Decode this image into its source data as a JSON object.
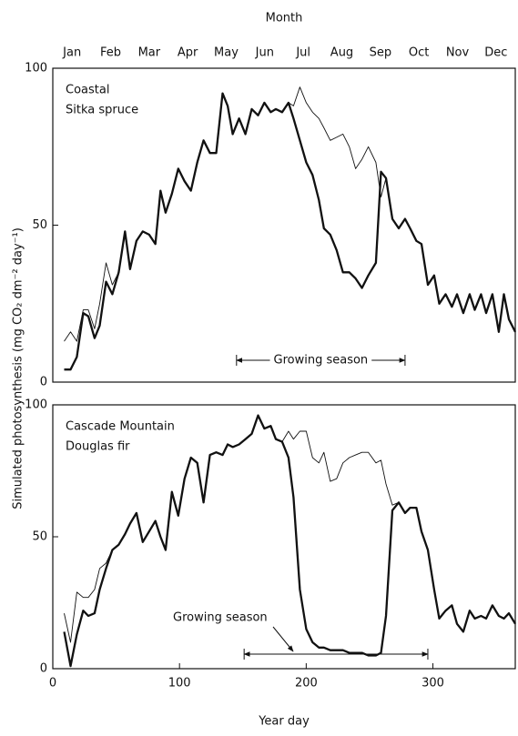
{
  "chart_data": [
    {
      "type": "line",
      "annotation_lines": [
        "Coastal",
        "Sitka spruce"
      ],
      "span_label": "Growing season",
      "span": [
        145,
        278
      ],
      "x2label": "Month",
      "x2categories": [
        "Jan",
        "Feb",
        "Mar",
        "Apr",
        "May",
        "Jun",
        "Jul",
        "Aug",
        "Sep",
        "Oct",
        "Nov",
        "Dec"
      ],
      "ylabel": "Simulated photosynthesis (mg CO₂ dm⁻² day⁻¹)",
      "xlim": [
        0,
        365
      ],
      "ylim": [
        0,
        100
      ],
      "yticks": [
        0,
        50,
        100
      ],
      "x": [
        9,
        14,
        19,
        24,
        28,
        33,
        37,
        42,
        47,
        52,
        57,
        61,
        66,
        71,
        76,
        81,
        85,
        89,
        94,
        99,
        104,
        109,
        114,
        119,
        124,
        129,
        134,
        138,
        142,
        147,
        152,
        157,
        162,
        167,
        172,
        176,
        181,
        186,
        190,
        195,
        200,
        205,
        210,
        214,
        219,
        224,
        229,
        234,
        239,
        244,
        249,
        255,
        259,
        263,
        268,
        273,
        278,
        282,
        287,
        291,
        296,
        301,
        305,
        310,
        315,
        319,
        324,
        329,
        333,
        338,
        342,
        347,
        352,
        356,
        360,
        365
      ],
      "series": [
        {
          "color": "#111111",
          "linewidth": 0.9,
          "values": [
            13,
            16,
            13,
            23,
            23,
            17,
            25,
            38,
            31,
            35,
            48,
            36,
            45,
            48,
            47,
            44,
            61,
            54,
            60,
            68,
            64,
            61,
            70,
            77,
            73,
            73,
            92,
            88,
            79,
            84,
            79,
            87,
            85,
            89,
            86,
            87,
            86,
            89,
            88,
            94,
            89,
            86,
            84,
            81,
            77,
            78,
            79,
            75,
            68,
            71,
            75,
            70,
            59,
            65,
            52,
            49,
            52,
            49,
            45,
            44,
            31,
            34,
            25,
            28,
            24,
            28,
            22,
            28,
            23,
            28,
            22,
            28,
            16,
            28,
            20,
            16
          ]
        },
        {
          "color": "#111111",
          "linewidth": 2.3,
          "values": [
            4,
            4,
            8,
            22,
            21,
            14,
            18,
            32,
            28,
            35,
            48,
            36,
            45,
            48,
            47,
            44,
            61,
            54,
            60,
            68,
            64,
            61,
            70,
            77,
            73,
            73,
            92,
            88,
            79,
            84,
            79,
            87,
            85,
            89,
            86,
            87,
            86,
            89,
            84,
            77,
            70,
            66,
            58,
            49,
            47,
            42,
            35,
            35,
            33,
            30,
            34,
            38,
            67,
            65,
            52,
            49,
            52,
            49,
            45,
            44,
            31,
            34,
            25,
            28,
            24,
            28,
            22,
            28,
            23,
            28,
            22,
            28,
            16,
            28,
            20,
            16
          ]
        }
      ]
    },
    {
      "type": "line",
      "annotation_lines": [
        "Cascade Mountain",
        "Douglas fir"
      ],
      "span_label": "Growing season",
      "span": [
        151,
        296
      ],
      "xlabel": "Year day",
      "xlim": [
        0,
        365
      ],
      "ylim": [
        0,
        100
      ],
      "yticks": [
        0,
        50,
        100
      ],
      "xticks": [
        0,
        100,
        200,
        300
      ],
      "x": [
        9,
        14,
        19,
        24,
        28,
        33,
        37,
        42,
        47,
        52,
        57,
        61,
        66,
        71,
        76,
        81,
        85,
        89,
        94,
        99,
        104,
        109,
        114,
        119,
        124,
        129,
        134,
        138,
        142,
        147,
        152,
        157,
        162,
        167,
        172,
        176,
        181,
        186,
        190,
        195,
        200,
        205,
        210,
        214,
        219,
        224,
        229,
        234,
        239,
        244,
        249,
        255,
        259,
        263,
        268,
        273,
        278,
        282,
        287,
        291,
        296,
        301,
        305,
        310,
        315,
        319,
        324,
        329,
        333,
        338,
        342,
        347,
        352,
        356,
        360,
        365
      ],
      "series": [
        {
          "color": "#111111",
          "linewidth": 0.9,
          "values": [
            21,
            10,
            29,
            27,
            27,
            30,
            38,
            40,
            45,
            47,
            51,
            55,
            59,
            48,
            52,
            56,
            50,
            45,
            67,
            58,
            72,
            80,
            78,
            63,
            81,
            82,
            81,
            85,
            84,
            85,
            87,
            89,
            96,
            91,
            92,
            87,
            86,
            90,
            87,
            90,
            90,
            80,
            78,
            82,
            71,
            72,
            78,
            80,
            81,
            82,
            82,
            78,
            79,
            70,
            62,
            63,
            59,
            61,
            61,
            52,
            45,
            30,
            19,
            22,
            24,
            17,
            14,
            22,
            19,
            20,
            19,
            24,
            20,
            19,
            21,
            17
          ]
        },
        {
          "color": "#111111",
          "linewidth": 2.3,
          "values": [
            14,
            1,
            13,
            22,
            20,
            21,
            30,
            38,
            45,
            47,
            51,
            55,
            59,
            48,
            52,
            56,
            50,
            45,
            67,
            58,
            72,
            80,
            78,
            63,
            81,
            82,
            81,
            85,
            84,
            85,
            87,
            89,
            96,
            91,
            92,
            87,
            86,
            80,
            65,
            30,
            15,
            10,
            8,
            8,
            7,
            7,
            7,
            6,
            6,
            6,
            5,
            5,
            6,
            20,
            60,
            63,
            59,
            61,
            61,
            52,
            45,
            30,
            19,
            22,
            24,
            17,
            14,
            22,
            19,
            20,
            19,
            24,
            20,
            19,
            21,
            17
          ]
        }
      ]
    }
  ]
}
